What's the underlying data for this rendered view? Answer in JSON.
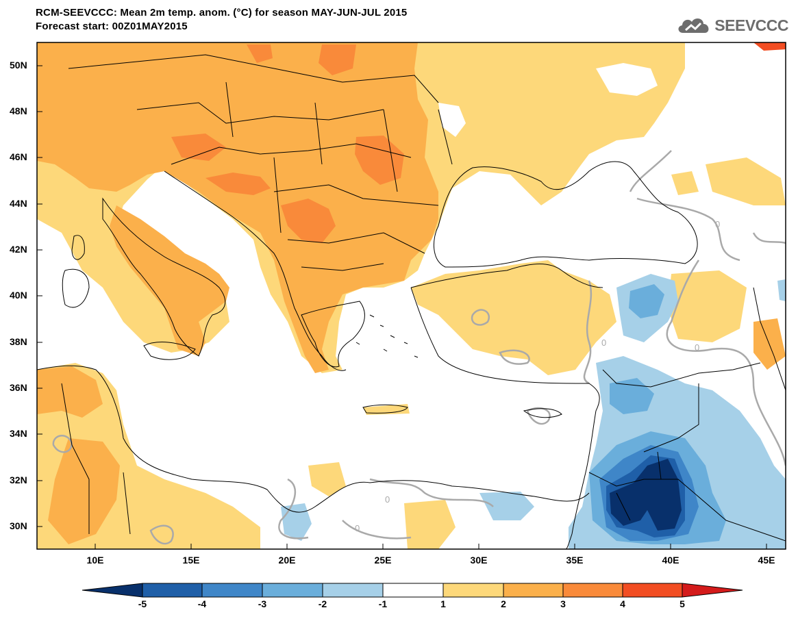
{
  "header": {
    "title_line1": "RCM-SEEVCCC: Mean 2m temp. anom. (°C) for season MAY-JUN-JUL 2015",
    "title_line2": "Forecast start: 00Z01MAY2015",
    "logo_text": "SEEVCCC",
    "logo_icon": "cloud-logo-icon"
  },
  "map": {
    "type": "temperature-anomaly-map",
    "region": "Southeast Europe, Mediterranean and Middle East",
    "lon_range": [
      7,
      45.5
    ],
    "lat_range": [
      29,
      51
    ],
    "lat_ticks": [
      "50N",
      "48N",
      "46N",
      "44N",
      "42N",
      "40N",
      "38N",
      "36N",
      "34N",
      "32N",
      "30N"
    ],
    "lon_ticks": [
      "10E",
      "15E",
      "20E",
      "25E",
      "30E",
      "35E",
      "40E",
      "45E"
    ],
    "contour_labels": [
      "0",
      "0",
      "0",
      "0",
      "0"
    ]
  },
  "colorbar": {
    "levels": [
      "-5",
      "-4",
      "-3",
      "-2",
      "-1",
      "1",
      "2",
      "3",
      "4",
      "5"
    ],
    "colors": [
      "#08306b",
      "#1f5fa8",
      "#3f86c8",
      "#6aaedb",
      "#a6d0e8",
      "#ffffff",
      "#fdd87a",
      "#fbb04b",
      "#f98a3a",
      "#f24d22",
      "#d41b1b"
    ],
    "units": "°C"
  },
  "colors": {
    "ocean": "#ffffff",
    "anom_pos_1": "#fdd87a",
    "anom_pos_2": "#fbb04b",
    "anom_pos_3": "#f98a3a",
    "anom_pos_4": "#f24d22",
    "anom_neg_1": "#a6d0e8",
    "anom_neg_2": "#6aaedb",
    "anom_neg_3": "#3f86c8",
    "anom_neg_4": "#1f5fa8",
    "anom_neg_5": "#08306b",
    "contour": "#a9a9a9",
    "border": "#000000"
  }
}
